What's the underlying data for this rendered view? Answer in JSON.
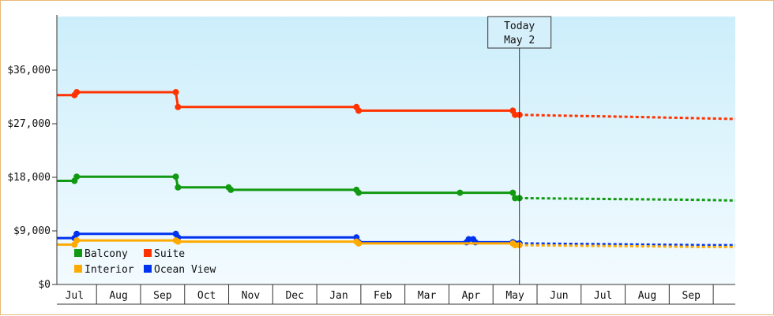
{
  "chart_data": {
    "type": "line",
    "title": "",
    "xlabel": "",
    "ylabel": "",
    "ylim": [
      0,
      45000
    ],
    "y_ticks": [
      0,
      9000,
      18000,
      27000,
      36000
    ],
    "y_tick_labels": [
      "$0",
      "$9,000",
      "$18,000",
      "$27,000",
      "$36,000"
    ],
    "x_month_labels": [
      "Jul",
      "Aug",
      "Sep",
      "Oct",
      "Nov",
      "Dec",
      "Jan",
      "Feb",
      "Mar",
      "Apr",
      "May",
      "Jun",
      "Jul",
      "Aug",
      "Sep"
    ],
    "x_range_month_index": [
      -0.4,
      15.0
    ],
    "today": {
      "line1": "Today",
      "line2": "May 2",
      "month_index": 10.1
    },
    "grid": false,
    "background": "light-blue-gradient",
    "legend_position": "bottom-left",
    "series": [
      {
        "name": "Suite",
        "color": "#ff3300",
        "values": [
          [
            -0.4,
            31800
          ],
          [
            0.0,
            31800
          ],
          [
            0.05,
            32300
          ],
          [
            2.3,
            32300
          ],
          [
            2.35,
            29800
          ],
          [
            6.4,
            29800
          ],
          [
            6.45,
            29200
          ],
          [
            9.95,
            29200
          ],
          [
            10.0,
            28500
          ],
          [
            10.1,
            28500
          ]
        ],
        "forecast": [
          [
            10.1,
            28500
          ],
          [
            11.5,
            28300
          ],
          [
            13.0,
            28100
          ],
          [
            14.3,
            27900
          ],
          [
            15.0,
            27800
          ]
        ]
      },
      {
        "name": "Balcony",
        "color": "#119911",
        "values": [
          [
            -0.4,
            17400
          ],
          [
            0.0,
            17400
          ],
          [
            0.05,
            18100
          ],
          [
            2.3,
            18100
          ],
          [
            2.35,
            16300
          ],
          [
            3.5,
            16300
          ],
          [
            3.55,
            15900
          ],
          [
            6.4,
            15900
          ],
          [
            6.45,
            15400
          ],
          [
            8.75,
            15400
          ],
          [
            9.95,
            15400
          ],
          [
            10.0,
            14500
          ],
          [
            10.1,
            14500
          ]
        ],
        "forecast": [
          [
            10.1,
            14500
          ],
          [
            11.5,
            14400
          ],
          [
            13.0,
            14300
          ],
          [
            14.3,
            14200
          ],
          [
            15.0,
            14100
          ]
        ]
      },
      {
        "name": "Ocean View",
        "color": "#0033ee",
        "values": [
          [
            -0.4,
            7800
          ],
          [
            0.0,
            7800
          ],
          [
            0.05,
            8500
          ],
          [
            2.3,
            8500
          ],
          [
            2.35,
            7900
          ],
          [
            6.4,
            7900
          ],
          [
            6.45,
            7100
          ],
          [
            8.9,
            7100
          ],
          [
            8.95,
            7600
          ],
          [
            9.05,
            7600
          ],
          [
            9.1,
            7100
          ],
          [
            9.95,
            7100
          ],
          [
            10.0,
            6900
          ],
          [
            10.1,
            6900
          ]
        ],
        "forecast": [
          [
            10.1,
            6900
          ],
          [
            11.5,
            6800
          ],
          [
            13.0,
            6700
          ],
          [
            14.3,
            6600
          ],
          [
            15.0,
            6600
          ]
        ]
      },
      {
        "name": "Interior",
        "color": "#ffaa00",
        "values": [
          [
            -0.4,
            6700
          ],
          [
            0.0,
            6700
          ],
          [
            0.05,
            7400
          ],
          [
            2.3,
            7400
          ],
          [
            2.35,
            7200
          ],
          [
            6.4,
            7200
          ],
          [
            6.45,
            6900
          ],
          [
            9.95,
            6900
          ],
          [
            10.0,
            6600
          ],
          [
            10.1,
            6600
          ]
        ],
        "forecast": [
          [
            10.1,
            6600
          ],
          [
            11.5,
            6500
          ],
          [
            13.0,
            6400
          ],
          [
            14.3,
            6300
          ],
          [
            15.0,
            6300
          ]
        ]
      }
    ],
    "legend_order": [
      "Balcony",
      "Suite",
      "Interior",
      "Ocean View"
    ]
  }
}
